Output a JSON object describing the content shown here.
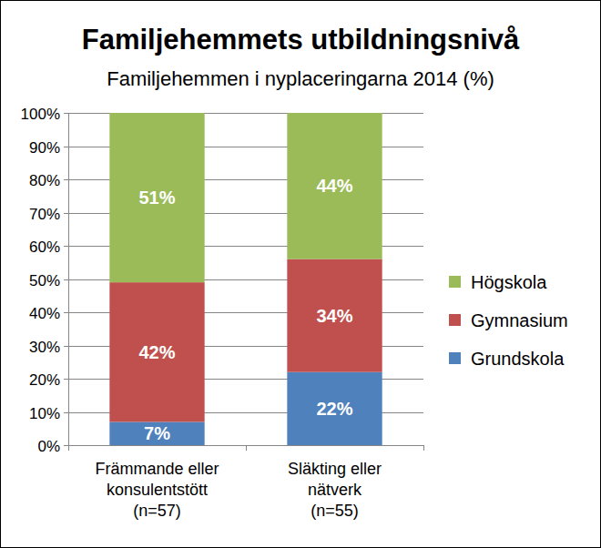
{
  "chart_data": {
    "type": "bar",
    "stacked": true,
    "title": "Familjehemmets utbildningsnivå",
    "subtitle": "Familjehemmen i nyplaceringarna 2014 (%)",
    "categories": [
      "Främmande eller\nkonsulentstött\n(n=57)",
      "Släkting eller\nnätverk\n(n=55)"
    ],
    "series": [
      {
        "name": "Grundskola",
        "color": "#4f81bd",
        "values": [
          7,
          22
        ],
        "value_labels": [
          "7%",
          "22%"
        ]
      },
      {
        "name": "Gymnasium",
        "color": "#c0504d",
        "values": [
          42,
          34
        ],
        "value_labels": [
          "42%",
          "34%"
        ]
      },
      {
        "name": "Högskola",
        "color": "#9bbb59",
        "values": [
          51,
          44
        ],
        "value_labels": [
          "51%",
          "44%"
        ]
      }
    ],
    "ylim": [
      0,
      100
    ],
    "yticks": [
      {
        "value": 0,
        "label": "0%"
      },
      {
        "value": 10,
        "label": "10%"
      },
      {
        "value": 20,
        "label": "20%"
      },
      {
        "value": 30,
        "label": "30%"
      },
      {
        "value": 40,
        "label": "40%"
      },
      {
        "value": 50,
        "label": "50%"
      },
      {
        "value": 60,
        "label": "60%"
      },
      {
        "value": 70,
        "label": "70%"
      },
      {
        "value": 80,
        "label": "80%"
      },
      {
        "value": 90,
        "label": "90%"
      },
      {
        "value": 100,
        "label": "100%"
      }
    ],
    "grid": true,
    "legend": "right",
    "data_labels": true
  }
}
